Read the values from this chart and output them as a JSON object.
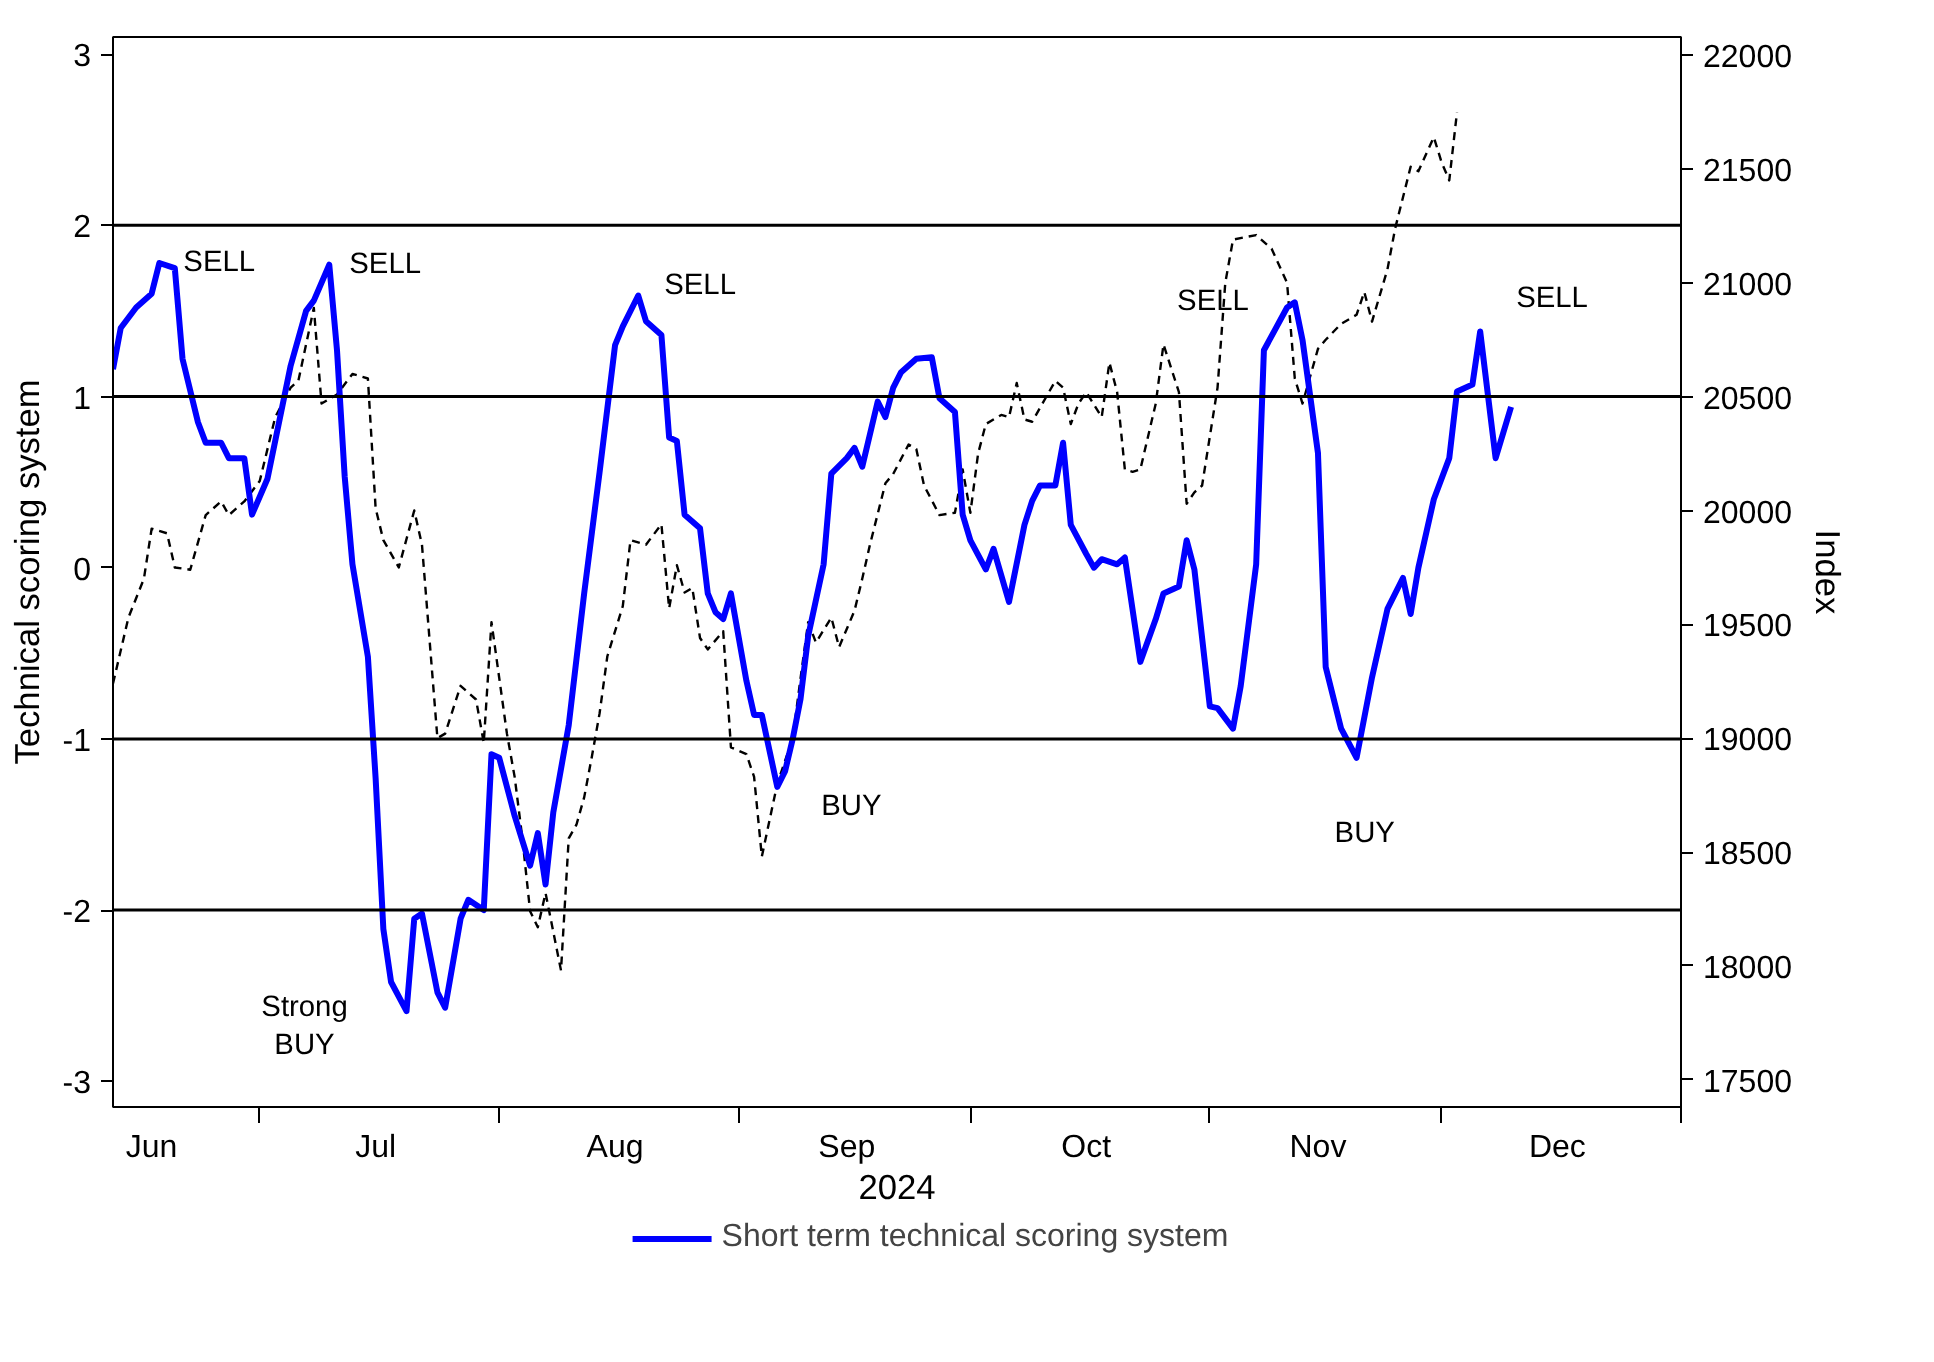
{
  "chart_data": {
    "type": "line",
    "xlabel": "2024",
    "ylabel": "Technical scoring system",
    "y2label": "Index",
    "xlim": [
      "2024-06-12",
      "2025-01-01"
    ],
    "xticks": [
      {
        "value": "2024-06-17",
        "label": "Jun"
      },
      {
        "value": "2024-07-01",
        "label": null
      },
      {
        "value": "2024-07-16",
        "label": "Jul"
      },
      {
        "value": "2024-08-01",
        "label": null
      },
      {
        "value": "2024-08-16",
        "label": "Aug"
      },
      {
        "value": "2024-09-01",
        "label": null
      },
      {
        "value": "2024-09-15",
        "label": "Sep"
      },
      {
        "value": "2024-10-01",
        "label": null
      },
      {
        "value": "2024-10-16",
        "label": "Oct"
      },
      {
        "value": "2024-11-01",
        "label": null
      },
      {
        "value": "2024-11-15",
        "label": "Nov"
      },
      {
        "value": "2024-12-01",
        "label": null
      },
      {
        "value": "2024-12-16",
        "label": "Dec"
      },
      {
        "value": "2025-01-01",
        "label": null
      }
    ],
    "ylim": [
      -3.15,
      3.1
    ],
    "yticks": [
      -3,
      -2,
      -1,
      0,
      1,
      2,
      3
    ],
    "y2lim": [
      17380,
      22080
    ],
    "y2ticks": [
      17500,
      18000,
      18500,
      19000,
      19500,
      20000,
      20500,
      21000,
      21500,
      22000
    ],
    "grid": false,
    "legend": "bottom",
    "ref_lines": [
      {
        "axis": "y",
        "value": 2,
        "color": "#000000"
      },
      {
        "axis": "y",
        "value": 1,
        "color": "#000000"
      },
      {
        "axis": "y",
        "value": -1,
        "color": "#000000"
      },
      {
        "axis": "y",
        "value": -2,
        "color": "#000000"
      }
    ],
    "annotations": [
      {
        "text": "SELL",
        "x": "2024-06-18",
        "y": 1.78
      },
      {
        "text": "SELL",
        "x": "2024-07-10",
        "y": 1.77
      },
      {
        "text": "SELL",
        "x": "2024-08-19",
        "y": 1.59
      },
      {
        "text": "Strong\nBUY",
        "x": "2024-07-20",
        "y": -2.59
      },
      {
        "text": "BUY",
        "x": "2024-09-06",
        "y": -1.28
      },
      {
        "text": "SELL",
        "x": "2024-11-12",
        "y": 1.55
      },
      {
        "text": "BUY",
        "x": "2024-11-20",
        "y": -1.11
      },
      {
        "text": "SELL",
        "x": "2024-12-06",
        "y": 1.38
      }
    ],
    "series": [
      {
        "axis": "y2",
        "color": "#000000",
        "line_style": "dashed",
        "x": [
          "2024-06-12",
          "2024-06-14",
          "2024-06-16",
          "2024-06-17",
          "2024-06-19",
          "2024-06-20",
          "2024-06-22",
          "2024-06-24",
          "2024-06-26",
          "2024-06-27",
          "2024-06-29",
          "2024-07-01",
          "2024-07-03",
          "2024-07-05",
          "2024-07-06",
          "2024-07-08",
          "2024-07-09",
          "2024-07-11",
          "2024-07-13",
          "2024-07-15",
          "2024-07-16",
          "2024-07-17",
          "2024-07-19",
          "2024-07-21",
          "2024-07-22",
          "2024-07-24",
          "2024-07-25",
          "2024-07-27",
          "2024-07-29",
          "2024-07-30",
          "2024-07-31",
          "2024-08-02",
          "2024-08-03",
          "2024-08-04",
          "2024-08-05",
          "2024-08-06",
          "2024-08-07",
          "2024-08-09",
          "2024-08-10",
          "2024-08-11",
          "2024-08-12",
          "2024-08-13",
          "2024-08-14",
          "2024-08-15",
          "2024-08-17",
          "2024-08-18",
          "2024-08-20",
          "2024-08-22",
          "2024-08-23",
          "2024-08-24",
          "2024-08-25",
          "2024-08-26",
          "2024-08-27",
          "2024-08-28",
          "2024-08-30",
          "2024-08-31",
          "2024-09-02",
          "2024-09-03",
          "2024-09-04",
          "2024-09-06",
          "2024-09-08",
          "2024-09-09",
          "2024-09-10",
          "2024-09-11",
          "2024-09-13",
          "2024-09-14",
          "2024-09-16",
          "2024-09-17",
          "2024-09-18",
          "2024-09-20",
          "2024-09-21",
          "2024-09-23",
          "2024-09-24",
          "2024-09-25",
          "2024-09-27",
          "2024-09-29",
          "2024-09-30",
          "2024-10-01",
          "2024-10-02",
          "2024-10-03",
          "2024-10-05",
          "2024-10-06",
          "2024-10-07",
          "2024-10-08",
          "2024-10-09",
          "2024-10-11",
          "2024-10-12",
          "2024-10-13",
          "2024-10-14",
          "2024-10-15",
          "2024-10-16",
          "2024-10-18",
          "2024-10-19",
          "2024-10-20",
          "2024-10-21",
          "2024-10-22",
          "2024-10-23",
          "2024-10-25",
          "2024-10-26",
          "2024-10-28",
          "2024-10-29",
          "2024-10-30",
          "2024-10-31",
          "2024-11-02",
          "2024-11-03",
          "2024-11-04",
          "2024-11-07",
          "2024-11-09",
          "2024-11-11",
          "2024-11-12",
          "2024-11-13",
          "2024-11-15",
          "2024-11-16",
          "2024-11-18",
          "2024-11-20",
          "2024-11-21",
          "2024-11-22",
          "2024-11-24",
          "2024-11-25",
          "2024-11-27",
          "2024-11-28",
          "2024-11-30",
          "2024-12-01",
          "2024-12-02",
          "2024-12-03"
        ],
        "values": [
          19240,
          19530,
          19700,
          19920,
          19900,
          19750,
          19740,
          19980,
          20040,
          19980,
          20040,
          20130,
          20410,
          20540,
          20570,
          20890,
          20470,
          20510,
          20600,
          20580,
          20010,
          19870,
          19750,
          20000,
          19850,
          19000,
          19020,
          19230,
          19170,
          18980,
          19510,
          19020,
          18830,
          18560,
          18240,
          18170,
          18320,
          17980,
          18560,
          18620,
          18740,
          18920,
          19110,
          19360,
          19580,
          19870,
          19850,
          19940,
          19570,
          19760,
          19640,
          19660,
          19440,
          19390,
          19470,
          18960,
          18930,
          18830,
          18480,
          18800,
          19000,
          19260,
          19510,
          19420,
          19530,
          19400,
          19560,
          19700,
          19850,
          20120,
          20160,
          20290,
          20270,
          20110,
          19980,
          19990,
          20180,
          19990,
          20250,
          20380,
          20420,
          20410,
          20560,
          20400,
          20390,
          20510,
          20570,
          20540,
          20380,
          20470,
          20520,
          20410,
          20650,
          20520,
          20180,
          20170,
          20180,
          20470,
          20730,
          20520,
          20030,
          20080,
          20110,
          20540,
          21000,
          21190,
          21210,
          21150,
          21000,
          20580,
          20470,
          20710,
          20750,
          20820,
          20860,
          20960,
          20830,
          21060,
          21240,
          21510,
          21490,
          21640,
          21530,
          21450,
          21750
        ]
      },
      {
        "name": "Short term technical scoring system",
        "color": "#0000ff",
        "line_style": "solid",
        "x": [
          "2024-06-12",
          "2024-06-13",
          "2024-06-15",
          "2024-06-17",
          "2024-06-18",
          "2024-06-20",
          "2024-06-21",
          "2024-06-23",
          "2024-06-24",
          "2024-06-26",
          "2024-06-27",
          "2024-06-29",
          "2024-06-30",
          "2024-07-02",
          "2024-07-05",
          "2024-07-07",
          "2024-07-08",
          "2024-07-10",
          "2024-07-11",
          "2024-07-12",
          "2024-07-13",
          "2024-07-15",
          "2024-07-16",
          "2024-07-17",
          "2024-07-18",
          "2024-07-20",
          "2024-07-21",
          "2024-07-22",
          "2024-07-24",
          "2024-07-25",
          "2024-07-27",
          "2024-07-28",
          "2024-07-30",
          "2024-07-31",
          "2024-08-01",
          "2024-08-03",
          "2024-08-05",
          "2024-08-06",
          "2024-08-07",
          "2024-08-08",
          "2024-08-10",
          "2024-08-12",
          "2024-08-14",
          "2024-08-16",
          "2024-08-17",
          "2024-08-19",
          "2024-08-20",
          "2024-08-22",
          "2024-08-23",
          "2024-08-24",
          "2024-08-25",
          "2024-08-27",
          "2024-08-28",
          "2024-08-29",
          "2024-08-30",
          "2024-08-31",
          "2024-09-02",
          "2024-09-03",
          "2024-09-04",
          "2024-09-06",
          "2024-09-07",
          "2024-09-08",
          "2024-09-09",
          "2024-09-10",
          "2024-09-12",
          "2024-09-13",
          "2024-09-15",
          "2024-09-16",
          "2024-09-17",
          "2024-09-19",
          "2024-09-20",
          "2024-09-21",
          "2024-09-22",
          "2024-09-24",
          "2024-09-26",
          "2024-09-27",
          "2024-09-29",
          "2024-09-30",
          "2024-10-01",
          "2024-10-03",
          "2024-10-04",
          "2024-10-06",
          "2024-10-08",
          "2024-10-09",
          "2024-10-10",
          "2024-10-12",
          "2024-10-13",
          "2024-10-14",
          "2024-10-16",
          "2024-10-17",
          "2024-10-18",
          "2024-10-20",
          "2024-10-21",
          "2024-10-23",
          "2024-10-25",
          "2024-10-26",
          "2024-10-28",
          "2024-10-29",
          "2024-10-30",
          "2024-11-01",
          "2024-11-02",
          "2024-11-04",
          "2024-11-05",
          "2024-11-07",
          "2024-11-08",
          "2024-11-11",
          "2024-11-12",
          "2024-11-13",
          "2024-11-15",
          "2024-11-16",
          "2024-11-18",
          "2024-11-20",
          "2024-11-22",
          "2024-11-24",
          "2024-11-26",
          "2024-11-27",
          "2024-11-28",
          "2024-11-30",
          "2024-12-02",
          "2024-12-03",
          "2024-12-05",
          "2024-12-06",
          "2024-12-08",
          "2024-12-10"
        ],
        "values": [
          1.16,
          1.4,
          1.52,
          1.6,
          1.78,
          1.75,
          1.22,
          0.85,
          0.73,
          0.73,
          0.64,
          0.64,
          0.31,
          0.52,
          1.18,
          1.5,
          1.56,
          1.77,
          1.27,
          0.53,
          0.02,
          -0.52,
          -1.23,
          -2.11,
          -2.42,
          -2.59,
          -2.05,
          -2.02,
          -2.48,
          -2.57,
          -2.05,
          -1.94,
          -2.0,
          -1.09,
          -1.11,
          -1.45,
          -1.74,
          -1.55,
          -1.85,
          -1.43,
          -0.92,
          -0.15,
          0.56,
          1.3,
          1.41,
          1.59,
          1.44,
          1.36,
          0.76,
          0.74,
          0.31,
          0.23,
          -0.15,
          -0.26,
          -0.3,
          -0.15,
          -0.66,
          -0.86,
          -0.86,
          -1.28,
          -1.19,
          -1.0,
          -0.77,
          -0.4,
          0.02,
          0.55,
          0.64,
          0.7,
          0.59,
          0.97,
          0.88,
          1.05,
          1.14,
          1.22,
          1.23,
          0.99,
          0.91,
          0.31,
          0.16,
          -0.01,
          0.11,
          -0.2,
          0.25,
          0.39,
          0.48,
          0.48,
          0.73,
          0.25,
          0.08,
          0.0,
          0.05,
          0.02,
          0.06,
          -0.55,
          -0.3,
          -0.15,
          -0.11,
          0.16,
          -0.01,
          -0.81,
          -0.82,
          -0.94,
          -0.69,
          0.02,
          1.27,
          1.52,
          1.55,
          1.33,
          0.67,
          -0.58,
          -0.94,
          -1.11,
          -0.64,
          -0.24,
          -0.06,
          -0.27,
          0.0,
          0.4,
          0.64,
          1.03,
          1.07,
          1.38,
          0.64,
          0.94
        ]
      }
    ]
  }
}
